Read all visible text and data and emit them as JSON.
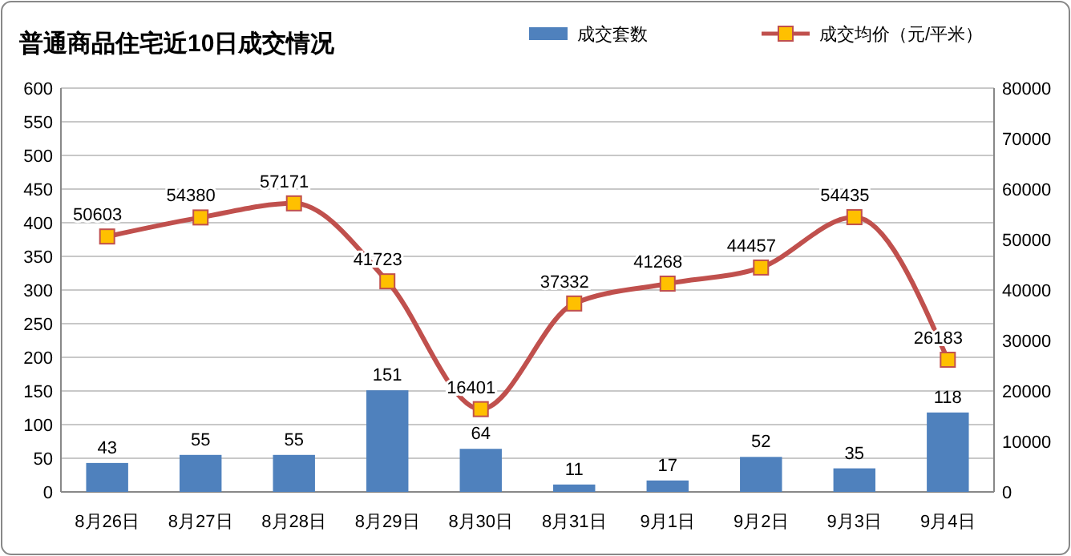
{
  "chart_data": {
    "type": "bar",
    "title": "普通商品住宅近10日成交情况",
    "categories": [
      "8月26日",
      "8月27日",
      "8月28日",
      "8月29日",
      "8月30日",
      "8月31日",
      "9月1日",
      "9月2日",
      "9月3日",
      "9月4日"
    ],
    "series": [
      {
        "name": "成交套数",
        "color": "#4f81bd",
        "values": [
          43,
          55,
          55,
          151,
          64,
          11,
          17,
          52,
          35,
          118
        ]
      },
      {
        "name": "成交均价（元/平米）",
        "type": "line",
        "axis": "y2",
        "color": "#c0504d",
        "marker": "square",
        "values": [
          50603,
          54380,
          57171,
          41723,
          16401,
          37332,
          41268,
          44457,
          54435,
          26183
        ]
      }
    ],
    "ylim": [
      0,
      600
    ],
    "yticks": [
      0,
      50,
      100,
      150,
      200,
      250,
      300,
      350,
      400,
      450,
      500,
      550,
      600
    ],
    "y2lim": [
      0,
      80000
    ],
    "y2ticks": [
      0,
      10000,
      20000,
      30000,
      40000,
      50000,
      60000,
      70000,
      80000
    ],
    "grid": "y",
    "legend": "top",
    "data_labels": true
  }
}
